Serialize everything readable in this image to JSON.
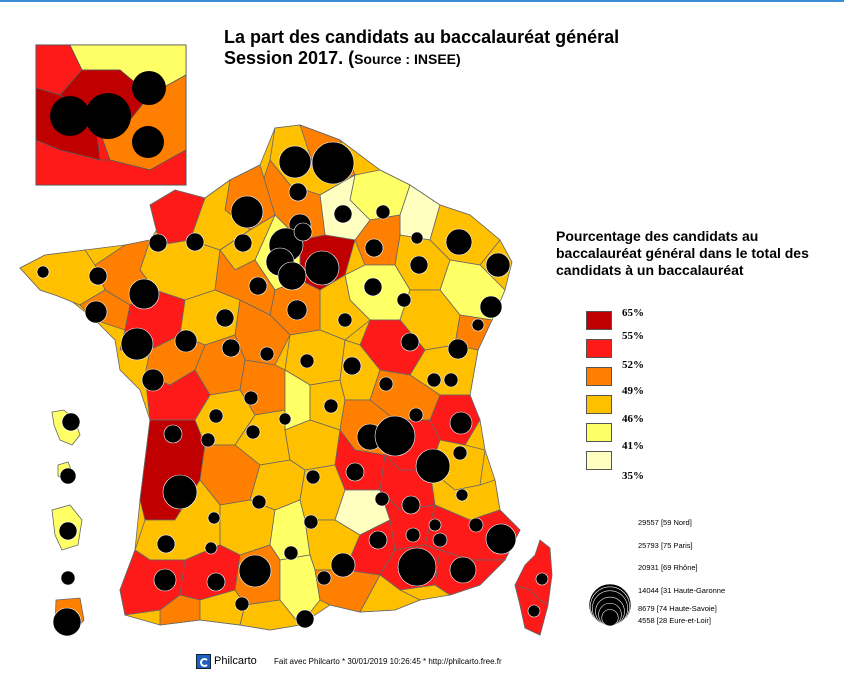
{
  "title": "La part des candidats au baccalauréat général",
  "subtitle_main": "Session 2017. (",
  "subtitle_source": "Source : INSEE)",
  "legend": {
    "title_line1": "Pourcentage des candidats au",
    "title_line2": "baccalauréat général dans le total des",
    "title_line3": "candidats à un baccalauréat",
    "classes": [
      {
        "label": "65%",
        "color": "#c00000"
      },
      {
        "label": "55%",
        "color": "#ff1a1a"
      },
      {
        "label": "52%",
        "color": "#ff8000"
      },
      {
        "label": "49%",
        "color": "#ffc000"
      },
      {
        "label": "46%",
        "color": "#ffff66"
      },
      {
        "label": "41%",
        "color": "#ffffc0"
      },
      {
        "label": "35%",
        "color": ""
      }
    ],
    "circles": [
      {
        "label": "29557  [59 Nord]",
        "value": 29557
      },
      {
        "label": "25793  [75 Paris]",
        "value": 25793
      },
      {
        "label": "20931  [69 Rhône]",
        "value": 20931
      },
      {
        "label": "14044  [31 Haute-Garonne",
        "value": 14044
      },
      {
        "label": "8679  [74 Haute-Savoie]",
        "value": 8679
      },
      {
        "label": "4558  [28 Eure-et-Loir]",
        "value": 4558
      }
    ]
  },
  "footer": {
    "brand": "Philcarto",
    "credit": "Fait avec Philcarto * 30/01/2019 10:26:45 * http://philcarto.free.fr"
  },
  "colors": {
    "c65": "#c00000",
    "c55": "#ff1a1a",
    "c52": "#ff8000",
    "c49": "#ffc000",
    "c46": "#ffff66",
    "c41": "#ffffc0",
    "circle": "#000000",
    "border": "#555555",
    "topline": "#3a8fd6"
  }
}
